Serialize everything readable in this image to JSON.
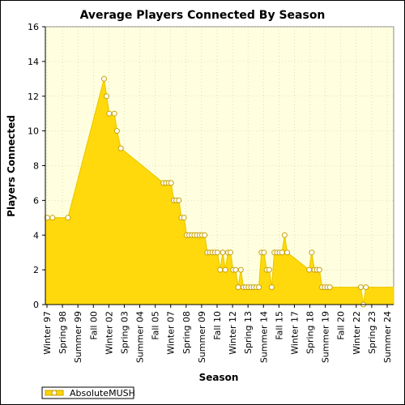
{
  "chart_data": {
    "type": "area",
    "title": "Average Players Connected By Season",
    "xlabel": "Season",
    "ylabel": "Players Connected",
    "ylim": [
      0,
      16
    ],
    "yticks": [
      0,
      2,
      4,
      6,
      8,
      10,
      12,
      14,
      16
    ],
    "grid": true,
    "legend_position": "bottom-left",
    "colors": {
      "fill": "#ffd700",
      "line": "#eecc00",
      "marker_fill": "#ffffff",
      "marker_stroke": "#c8a000",
      "plot_bg": "#ffffe0",
      "grid": "#c8c8a0"
    },
    "x_tick_labels": [
      "Winter 97",
      "Spring 98",
      "Summer 99",
      "Fall 00",
      "Winter 02",
      "Spring 03",
      "Summer 04",
      "Fall 05",
      "Winter 07",
      "Spring 08",
      "Summer 09",
      "Fall 10",
      "Winter 12",
      "Spring 13",
      "Summer 14",
      "Fall 15",
      "Winter 17",
      "Spring 18",
      "Summer 19",
      "Fall 20",
      "Winter 22",
      "Spring 23",
      "Summer 24"
    ],
    "series": [
      {
        "name": "AbsoluteMUSH",
        "points": [
          {
            "x": 1997.9,
            "y": 5
          },
          {
            "x": 1998.3,
            "y": 5
          },
          {
            "x": 1999.5,
            "y": 5
          },
          {
            "x": 2002.3,
            "y": 13
          },
          {
            "x": 2002.5,
            "y": 12
          },
          {
            "x": 2002.7,
            "y": 11
          },
          {
            "x": 2003.1,
            "y": 11
          },
          {
            "x": 2003.3,
            "y": 10
          },
          {
            "x": 2003.6,
            "y": 9
          },
          {
            "x": 2006.9,
            "y": 7
          },
          {
            "x": 2007.1,
            "y": 7
          },
          {
            "x": 2007.3,
            "y": 7
          },
          {
            "x": 2007.5,
            "y": 7
          },
          {
            "x": 2007.7,
            "y": 6
          },
          {
            "x": 2007.9,
            "y": 6
          },
          {
            "x": 2008.1,
            "y": 6
          },
          {
            "x": 2008.3,
            "y": 5
          },
          {
            "x": 2008.5,
            "y": 5
          },
          {
            "x": 2008.7,
            "y": 4
          },
          {
            "x": 2008.9,
            "y": 4
          },
          {
            "x": 2009.1,
            "y": 4
          },
          {
            "x": 2009.3,
            "y": 4
          },
          {
            "x": 2009.5,
            "y": 4
          },
          {
            "x": 2009.7,
            "y": 4
          },
          {
            "x": 2009.9,
            "y": 4
          },
          {
            "x": 2010.1,
            "y": 4
          },
          {
            "x": 2010.3,
            "y": 3
          },
          {
            "x": 2010.5,
            "y": 3
          },
          {
            "x": 2010.7,
            "y": 3
          },
          {
            "x": 2010.9,
            "y": 3
          },
          {
            "x": 2011.1,
            "y": 3
          },
          {
            "x": 2011.3,
            "y": 2
          },
          {
            "x": 2011.5,
            "y": 3
          },
          {
            "x": 2011.7,
            "y": 2
          },
          {
            "x": 2011.9,
            "y": 3
          },
          {
            "x": 2012.1,
            "y": 3
          },
          {
            "x": 2012.3,
            "y": 2
          },
          {
            "x": 2012.5,
            "y": 2
          },
          {
            "x": 2012.7,
            "y": 1
          },
          {
            "x": 2012.9,
            "y": 2
          },
          {
            "x": 2013.1,
            "y": 1
          },
          {
            "x": 2013.3,
            "y": 1
          },
          {
            "x": 2013.5,
            "y": 1
          },
          {
            "x": 2013.7,
            "y": 1
          },
          {
            "x": 2013.9,
            "y": 1
          },
          {
            "x": 2014.1,
            "y": 1
          },
          {
            "x": 2014.3,
            "y": 1
          },
          {
            "x": 2014.5,
            "y": 3
          },
          {
            "x": 2014.7,
            "y": 3
          },
          {
            "x": 2014.9,
            "y": 2
          },
          {
            "x": 2015.1,
            "y": 2
          },
          {
            "x": 2015.3,
            "y": 1
          },
          {
            "x": 2015.5,
            "y": 3
          },
          {
            "x": 2015.7,
            "y": 3
          },
          {
            "x": 2015.9,
            "y": 3
          },
          {
            "x": 2016.1,
            "y": 3
          },
          {
            "x": 2016.3,
            "y": 4
          },
          {
            "x": 2016.5,
            "y": 3
          },
          {
            "x": 2018.2,
            "y": 2
          },
          {
            "x": 2018.4,
            "y": 3
          },
          {
            "x": 2018.6,
            "y": 2
          },
          {
            "x": 2018.8,
            "y": 2
          },
          {
            "x": 2019.0,
            "y": 2
          },
          {
            "x": 2019.2,
            "y": 1
          },
          {
            "x": 2019.4,
            "y": 1
          },
          {
            "x": 2019.6,
            "y": 1
          },
          {
            "x": 2019.8,
            "y": 1
          },
          {
            "x": 2022.2,
            "y": 1
          },
          {
            "x": 2022.4,
            "y": 0
          },
          {
            "x": 2022.6,
            "y": 1
          }
        ]
      }
    ]
  }
}
